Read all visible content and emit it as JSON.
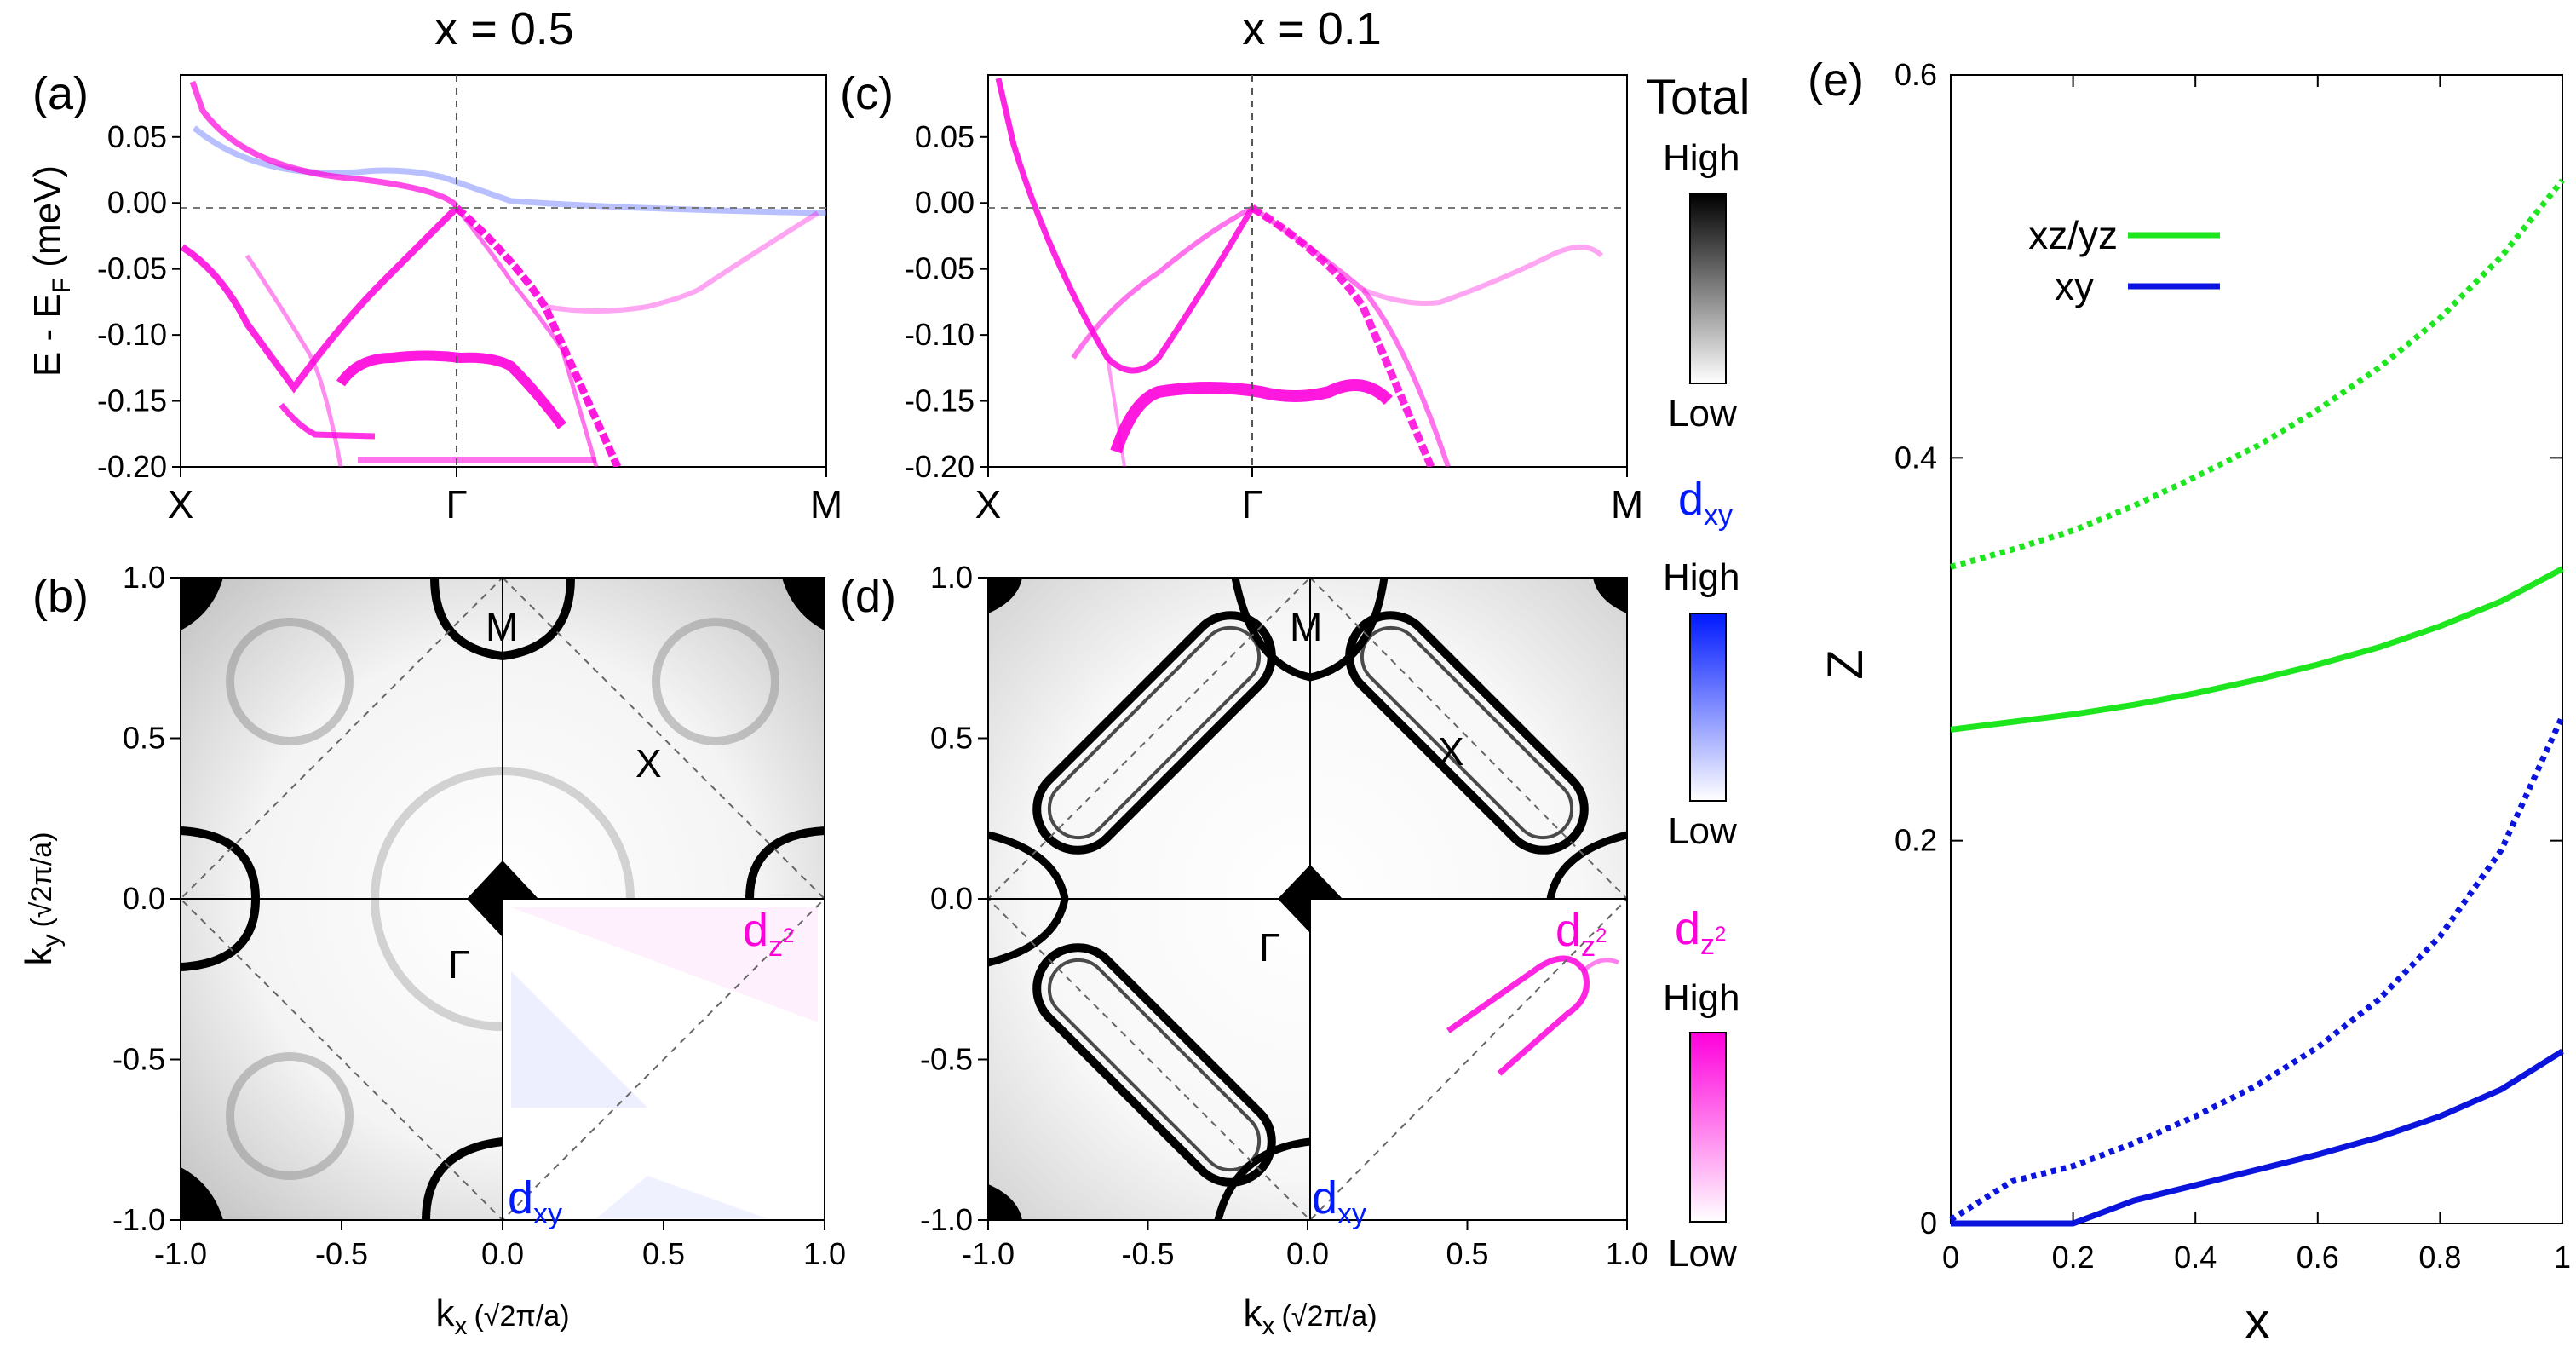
{
  "panel_labels": {
    "a": "(a)",
    "b": "(b)",
    "c": "(c)",
    "d": "(d)",
    "e": "(e)"
  },
  "column_titles": {
    "left": "x = 0.5",
    "right": "x = 0.1"
  },
  "band": {
    "ylabel_main": "E - E",
    "ylabel_sub": "F",
    "ylabel_unit": " (meV)",
    "yticks": [
      "0.05",
      "0.00",
      "-0.05",
      "-0.10",
      "-0.15",
      "-0.20"
    ],
    "xticks": [
      "X",
      "Γ",
      "M"
    ]
  },
  "fermi": {
    "ticks": [
      "-1.0",
      "-0.5",
      "0.0",
      "0.5",
      "1.0"
    ],
    "xlabel_k": "k",
    "xlabel_sub": "x",
    "ylabel_sub": "y",
    "axis_unit": "(√2π/a)",
    "sym_M": "M",
    "sym_X": "X",
    "sym_G": "Γ",
    "dxy_d": "d",
    "dxy_sub": "xy",
    "dz2_d": "d",
    "dz2_sub": "z",
    "dz2_sup": "2"
  },
  "legend": {
    "total": "Total",
    "high": "High",
    "low": "Low",
    "d": "d",
    "xy_sub": "xy",
    "z_sub": "z",
    "sq_sup": "2"
  },
  "colors": {
    "pink": "#ff00dc",
    "blue": "#0019ff",
    "green": "#1ee61e",
    "darkblue": "#0a14dc"
  },
  "chart_data": {
    "type": "line",
    "title": "(e)",
    "xlabel": "x",
    "ylabel": "Z",
    "xlim": [
      0,
      1
    ],
    "ylim": [
      0,
      0.6
    ],
    "xticks": [
      "0",
      "0.2",
      "0.4",
      "0.6",
      "0.8",
      "1"
    ],
    "yticks": [
      "0",
      "0.2",
      "0.4",
      "0.6"
    ],
    "legend": [
      {
        "name": "xz/yz",
        "color": "#1ee61e"
      },
      {
        "name": "xy",
        "color": "#0a14dc"
      }
    ],
    "series": [
      {
        "name": "xz/yz",
        "style": "dotted",
        "x": [
          0,
          0.1,
          0.2,
          0.3,
          0.4,
          0.5,
          0.6,
          0.7,
          0.8,
          0.9,
          1.0
        ],
        "y": [
          0.343,
          0.352,
          0.362,
          0.375,
          0.39,
          0.406,
          0.425,
          0.447,
          0.473,
          0.505,
          0.545
        ]
      },
      {
        "name": "xz/yz",
        "style": "solid",
        "x": [
          0,
          0.1,
          0.2,
          0.3,
          0.4,
          0.5,
          0.6,
          0.7,
          0.8,
          0.9,
          1.0
        ],
        "y": [
          0.258,
          0.262,
          0.266,
          0.271,
          0.277,
          0.284,
          0.292,
          0.301,
          0.312,
          0.325,
          0.342
        ]
      },
      {
        "name": "xy",
        "style": "dotted",
        "x": [
          0,
          0.1,
          0.2,
          0.3,
          0.4,
          0.5,
          0.6,
          0.7,
          0.8,
          0.9,
          1.0
        ],
        "y": [
          0.002,
          0.022,
          0.03,
          0.042,
          0.056,
          0.072,
          0.092,
          0.117,
          0.15,
          0.195,
          0.265
        ]
      },
      {
        "name": "xy",
        "style": "solid",
        "x": [
          0,
          0.1,
          0.2,
          0.3,
          0.4,
          0.5,
          0.6,
          0.7,
          0.8,
          0.9,
          1.0
        ],
        "y": [
          0,
          0,
          0,
          0.012,
          0.02,
          0.028,
          0.036,
          0.045,
          0.056,
          0.07,
          0.09
        ]
      }
    ]
  }
}
